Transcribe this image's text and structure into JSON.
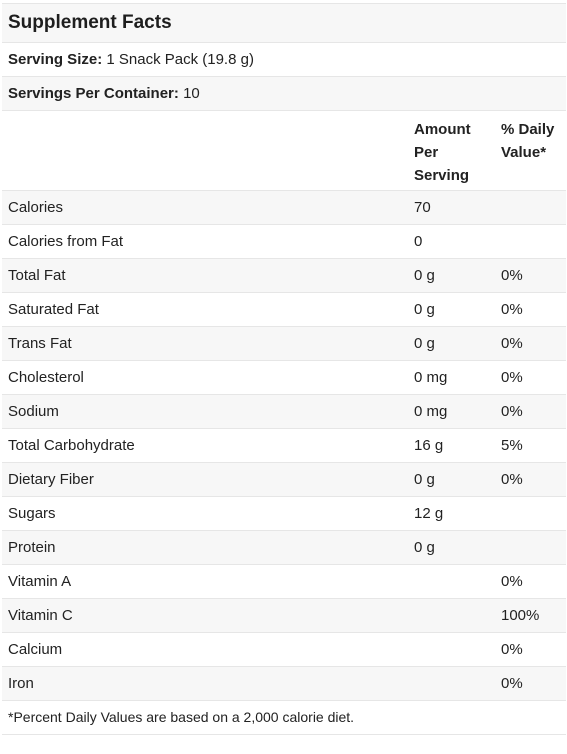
{
  "title": "Supplement Facts",
  "serving_size": {
    "label": "Serving Size:",
    "value": "1 Snack Pack (19.8 g)"
  },
  "servings_per_container": {
    "label": "Servings Per Container:",
    "value": "10"
  },
  "columns": {
    "amount_line1": "Amount",
    "amount_line2": "Per",
    "amount_line3": "Serving",
    "dv_line1": "% Daily",
    "dv_line2": "Value*"
  },
  "rows": [
    {
      "name": "Calories",
      "amount": "70",
      "dv": ""
    },
    {
      "name": "Calories from Fat",
      "amount": "0",
      "dv": ""
    },
    {
      "name": "Total Fat",
      "amount": "0 g",
      "dv": "0%"
    },
    {
      "name": "Saturated Fat",
      "amount": "0 g",
      "dv": "0%"
    },
    {
      "name": "Trans Fat",
      "amount": "0 g",
      "dv": "0%"
    },
    {
      "name": "Cholesterol",
      "amount": "0 mg",
      "dv": "0%"
    },
    {
      "name": "Sodium",
      "amount": "0 mg",
      "dv": "0%"
    },
    {
      "name": "Total Carbohydrate",
      "amount": "16 g",
      "dv": "5%"
    },
    {
      "name": "Dietary Fiber",
      "amount": "0 g",
      "dv": "0%"
    },
    {
      "name": "Sugars",
      "amount": "12 g",
      "dv": ""
    },
    {
      "name": "Protein",
      "amount": "0 g",
      "dv": ""
    },
    {
      "name": "Vitamin A",
      "amount": "",
      "dv": "0%"
    },
    {
      "name": "Vitamin C",
      "amount": "",
      "dv": "100%"
    },
    {
      "name": "Calcium",
      "amount": "",
      "dv": "0%"
    },
    {
      "name": "Iron",
      "amount": "",
      "dv": "0%"
    }
  ],
  "footnote": "*Percent Daily Values are based on a 2,000 calorie diet."
}
